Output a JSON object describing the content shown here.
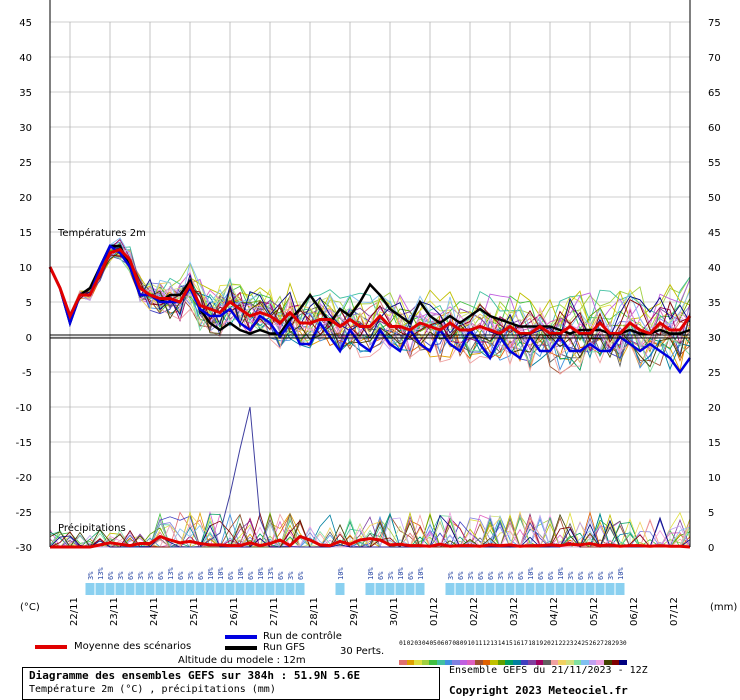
{
  "chart_data": {
    "type": "line",
    "title": "Diagramme des ensembles GEFS sur 384h : 51.9N 5.6E",
    "subtitle": "Température 2m (°C) , précipitations (mm)",
    "left_axis": {
      "label": "(°C)",
      "ticks": [
        45,
        40,
        35,
        30,
        25,
        20,
        15,
        10,
        5,
        0,
        -5,
        -10,
        -15,
        -20,
        -25,
        -30
      ],
      "range": [
        -30,
        45
      ]
    },
    "right_axis": {
      "label": "(mm)",
      "ticks": [
        75,
        70,
        65,
        60,
        55,
        50,
        45,
        40,
        35,
        30,
        25,
        20,
        15,
        10,
        5,
        0
      ],
      "range": [
        0,
        75
      ]
    },
    "x_labels": [
      "22/11",
      "23/11",
      "24/11",
      "25/11",
      "26/11",
      "27/11",
      "28/11",
      "29/11",
      "30/11",
      "01/12",
      "02/12",
      "03/12",
      "04/12",
      "05/12",
      "06/12",
      "07/12"
    ],
    "annotations": [
      "Températures 2m",
      "Précipitations"
    ],
    "snow_labels": [
      "3%",
      "13%",
      "6%",
      "3%",
      "6%",
      "3%",
      "3%",
      "6%",
      "13%",
      "6%",
      "3%",
      "6%",
      "10%",
      "10%",
      "6%",
      "10%",
      "6%",
      "10%",
      "13%",
      "6%",
      "3%",
      "6%",
      "10%",
      "10%",
      "6%",
      "3%",
      "10%",
      "6%",
      "10%",
      "3%",
      "6%",
      "3%",
      "6%",
      "6%",
      "3%",
      "3%",
      "6%",
      "10%",
      "6%",
      "6%",
      "10%",
      "3%",
      "6%",
      "3%",
      "6%",
      "3%",
      "10%"
    ],
    "n_steps": 65,
    "mean_temp": [
      10,
      7,
      3,
      6,
      6,
      9,
      12,
      12.5,
      11,
      7,
      6,
      5.5,
      5.5,
      5,
      7.5,
      4.5,
      4,
      3.5,
      5,
      4,
      3,
      3.5,
      3,
      2,
      3.5,
      2,
      2,
      2.5,
      2.5,
      1.5,
      2.5,
      1.5,
      1.5,
      3,
      1.5,
      1.5,
      1,
      2,
      1.5,
      1,
      2,
      1,
      1,
      1.5,
      1,
      0.5,
      1.5,
      0.5,
      0.5,
      1.5,
      0.5,
      0.5,
      1.5,
      0.5,
      0.5,
      2,
      0.5,
      0.5,
      2,
      1,
      0.5,
      2,
      1,
      1,
      3
    ],
    "control_temp": [
      10,
      7,
      2,
      6,
      6,
      10,
      13,
      12,
      10,
      6,
      6,
      5,
      5,
      5,
      7,
      4,
      3,
      3,
      4,
      2,
      1,
      3,
      2,
      0,
      2,
      -1,
      -1,
      2,
      0,
      -2,
      1,
      -1,
      -2,
      1,
      -1,
      -2,
      1,
      -1,
      -2,
      1,
      -1,
      -2,
      1,
      -1,
      -3,
      0,
      -2,
      -3,
      0,
      -2,
      -2,
      0,
      -2,
      -2,
      -1,
      -2,
      -2,
      0,
      -1,
      -2,
      -1,
      -2,
      -3,
      -5,
      -3
    ],
    "gfs_temp": [
      10,
      7,
      2,
      6,
      7,
      10,
      13,
      13,
      10,
      6,
      6,
      5,
      6,
      6,
      8,
      4,
      2,
      1,
      2,
      1,
      0.5,
      1,
      0.5,
      0.5,
      2.5,
      4,
      6,
      4,
      2,
      4,
      3,
      5,
      7.5,
      6,
      4,
      3,
      2,
      5,
      3,
      2,
      3,
      2,
      3,
      4,
      3,
      2.5,
      2,
      1.5,
      1.5,
      1.5,
      1.5,
      1,
      0.5,
      1,
      1,
      1,
      0.5,
      0.5,
      1,
      0.5,
      0.5,
      1,
      0.5,
      0.5,
      1
    ],
    "mean_precip": [
      0,
      0,
      0,
      0,
      0,
      0.3,
      0.6,
      0.4,
      0.2,
      0.5,
      0.5,
      1.5,
      1,
      0.6,
      0.8,
      0.5,
      0.3,
      0.3,
      0.2,
      0.2,
      0.6,
      0.2,
      0.5,
      1,
      0.2,
      1.5,
      1,
      0.3,
      0.2,
      0.8,
      0.4,
      1,
      1.2,
      1,
      0.3,
      0.4,
      0.2,
      0.2,
      0.1,
      0.4,
      0.1,
      0.2,
      0.2,
      0.1,
      0.3,
      0.2,
      0.3,
      0.1,
      0.2,
      0.2,
      0.3,
      0.2,
      0.4,
      0.3,
      0.5,
      0.2,
      0.3,
      0.1,
      0.2,
      0.2,
      0.1,
      0.2,
      0.1,
      0.1,
      0
    ],
    "precip_peak": {
      "step": 16,
      "values": [
        0,
        0,
        0,
        0,
        1,
        2,
        7.5,
        14,
        20,
        4,
        0.5
      ]
    },
    "series": [
      {
        "name": "Moyenne des scénarios",
        "color": "#e00000"
      },
      {
        "name": "Run de contrôle",
        "color": "#0000e0"
      },
      {
        "name": "Run GFS",
        "color": "#000000"
      }
    ],
    "perturbation_colors": [
      "#e07070",
      "#e0a000",
      "#e0e040",
      "#a0d040",
      "#40c040",
      "#40c0a0",
      "#4090e0",
      "#8080e0",
      "#c060e0",
      "#e060c0",
      "#a05030",
      "#e06000",
      "#c0c000",
      "#60a000",
      "#00a060",
      "#0080a0",
      "#4040c0",
      "#8040a0",
      "#a00060",
      "#606060",
      "#f0a0a0",
      "#f0d060",
      "#d0e080",
      "#80e0a0",
      "#80c0f0",
      "#c0a0f0",
      "#f0a0e0",
      "#404000",
      "#800000",
      "#000080"
    ]
  },
  "legend": {
    "mean_label": "Moyenne des scénarios",
    "control_label": "Run de contrôle",
    "gfs_label": "Run GFS",
    "perts_label": "30 Perts.",
    "pert_numbers": [
      "01",
      "02",
      "03",
      "04",
      "05",
      "06",
      "07",
      "08",
      "09",
      "10",
      "11",
      "12",
      "13",
      "14",
      "15",
      "16",
      "17",
      "18",
      "19",
      "20",
      "21",
      "22",
      "23",
      "24",
      "25",
      "26",
      "27",
      "28",
      "29",
      "30"
    ]
  },
  "footer": {
    "altitude": "Altitude du modele : 12m",
    "title": "Diagramme des ensembles GEFS sur 384h : 51.9N 5.6E",
    "subtitle": "Température 2m (°C) , précipitations (mm)",
    "ensemble": "Ensemble GEFS du 21/11/2023 - 12Z",
    "copyright": "Copyright 2023 Meteociel.fr"
  },
  "colors": {
    "mean": "#e00000",
    "control": "#0000e0",
    "gfs": "#000000",
    "snow": "#8ad0f0",
    "grid": "#a0a0a0"
  }
}
